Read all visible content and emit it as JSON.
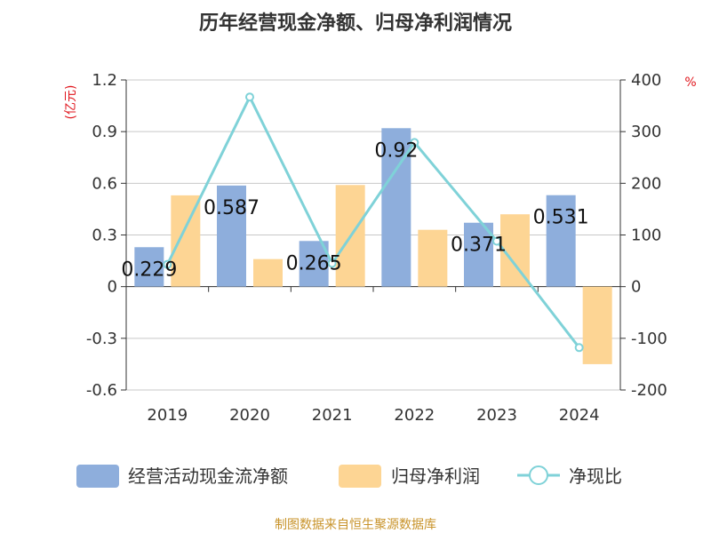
{
  "chart_data": {
    "type": "bar",
    "title": "历年经营现金净额、归母净利润情况",
    "categories": [
      "2019",
      "2020",
      "2021",
      "2022",
      "2023",
      "2024"
    ],
    "left_axis": {
      "unit": "(亿元)",
      "ylim": [
        -0.6,
        1.2
      ],
      "ticks": [
        "1.2",
        "0.9",
        "0.6",
        "0.3",
        "0",
        "-0.3",
        "-0.6"
      ]
    },
    "right_axis": {
      "unit": "%",
      "ylim": [
        -200,
        400
      ],
      "ticks": [
        "400",
        "300",
        "200",
        "100",
        "0",
        "-100",
        "-200"
      ]
    },
    "series": [
      {
        "name": "经营活动现金流净额",
        "type": "bar",
        "axis": "left",
        "color": "#8eaedc",
        "values": [
          0.229,
          0.587,
          0.265,
          0.92,
          0.371,
          0.531
        ],
        "data_labels": [
          "0.229",
          "0.587",
          "0.265",
          "0.92",
          "0.371",
          "0.531"
        ]
      },
      {
        "name": "归母净利润",
        "type": "bar",
        "axis": "left",
        "color": "#fdd594",
        "values": [
          0.53,
          0.16,
          0.59,
          0.33,
          0.42,
          -0.45
        ]
      },
      {
        "name": "净现比",
        "type": "line",
        "axis": "right",
        "color": "#7fd2d8",
        "values": [
          43,
          367,
          45,
          279,
          88,
          -118
        ]
      }
    ],
    "grid": true,
    "legend_position": "bottom"
  },
  "footer": {
    "source": "制图数据来自恒生聚源数据库"
  }
}
